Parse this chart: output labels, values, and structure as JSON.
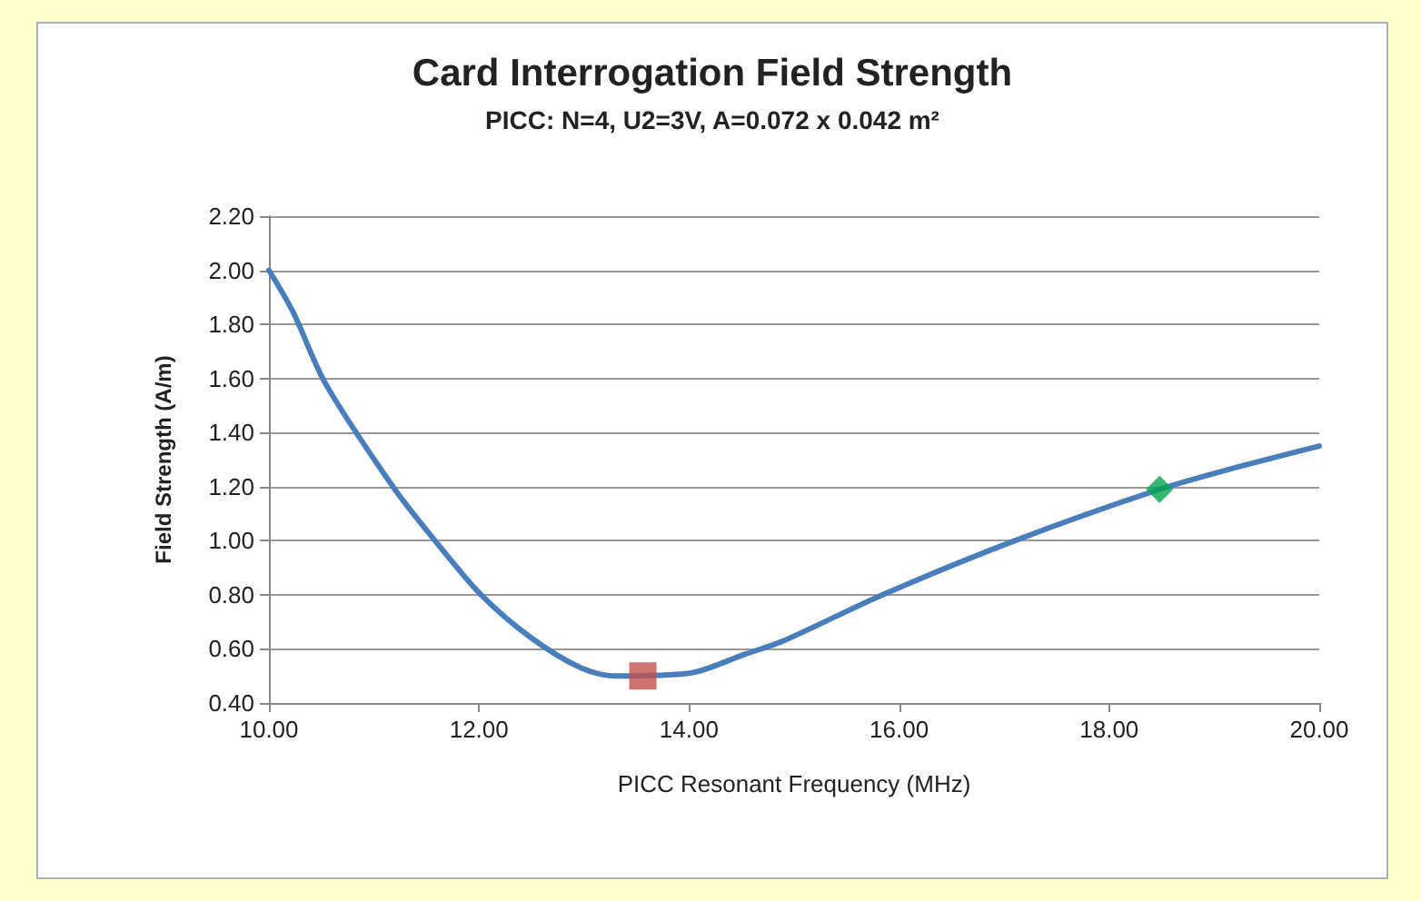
{
  "chart_data": {
    "type": "line",
    "title": "Card Interrogation Field Strength",
    "subtitle": "PICC: N=4, U2=3V, A=0.072 x 0.042 m²",
    "xlabel": "PICC Resonant Frequency (MHz)",
    "ylabel": "Field Strength (A/m)",
    "xlim": [
      10,
      20
    ],
    "ylim": [
      0.4,
      2.2
    ],
    "xticks": [
      {
        "value": 10,
        "label": "10.00"
      },
      {
        "value": 12,
        "label": "12.00"
      },
      {
        "value": 14,
        "label": "14.00"
      },
      {
        "value": 16,
        "label": "16.00"
      },
      {
        "value": 18,
        "label": "18.00"
      },
      {
        "value": 20,
        "label": "20.00"
      }
    ],
    "yticks": [
      {
        "value": 0.4,
        "label": "0.40"
      },
      {
        "value": 0.6,
        "label": "0.60"
      },
      {
        "value": 0.8,
        "label": "0.80"
      },
      {
        "value": 1.0,
        "label": "1.00"
      },
      {
        "value": 1.2,
        "label": "1.20"
      },
      {
        "value": 1.4,
        "label": "1.40"
      },
      {
        "value": 1.6,
        "label": "1.60"
      },
      {
        "value": 1.8,
        "label": "1.80"
      },
      {
        "value": 2.0,
        "label": "2.00"
      },
      {
        "value": 2.2,
        "label": "2.20"
      }
    ],
    "grid": "y",
    "line_style": "solid",
    "series": [
      {
        "marker": "none",
        "color": "#4a7ebb",
        "x": [
          10,
          10.23,
          10.54,
          11.18,
          11.54,
          12.02,
          12.5,
          12.97,
          13.3,
          14.0,
          14.53,
          14.9,
          15.84,
          17.1,
          18.48,
          19.2,
          20
        ],
        "values": [
          2.0,
          1.845,
          1.58,
          1.2,
          1.02,
          0.8,
          0.64,
          0.53,
          0.5,
          0.51,
          0.58,
          0.63,
          0.8,
          1.0,
          1.19,
          1.27,
          1.35
        ]
      },
      {
        "type": "scatter",
        "marker": "square",
        "color": "#c0504d",
        "x": [
          13.56
        ],
        "values": [
          0.5
        ]
      },
      {
        "type": "scatter",
        "marker": "diamond",
        "color": "#00a550",
        "x": [
          18.48
        ],
        "values": [
          1.19
        ]
      }
    ]
  }
}
